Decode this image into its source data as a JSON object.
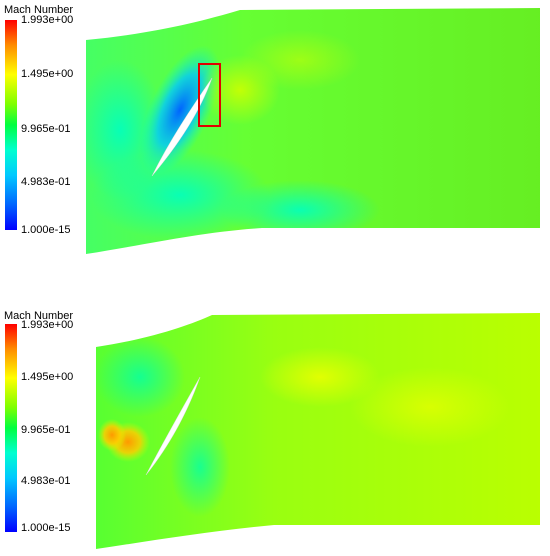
{
  "panels": [
    {
      "legend_title": "Mach Number",
      "ticks": [
        "1.993e+00",
        "1.495e+00",
        "9.965e-01",
        "4.983e-01",
        "1.000e-15"
      ],
      "highlight_box": true
    },
    {
      "legend_title": "Mach Number",
      "ticks": [
        "1.993e+00",
        "1.495e+00",
        "9.965e-01",
        "4.983e-01",
        "1.000e-15"
      ],
      "highlight_box": false
    }
  ],
  "colors": {
    "max": "#ff0000",
    "high": "#ffff00",
    "mid": "#66ff00",
    "low": "#00ffcc",
    "min": "#0000ff",
    "highlight": "#e00000"
  }
}
